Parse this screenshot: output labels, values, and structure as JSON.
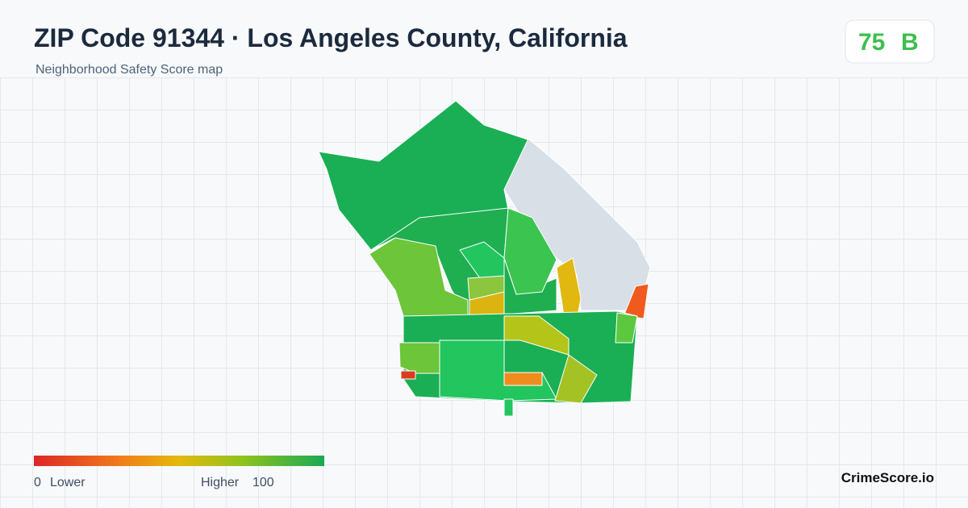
{
  "header": {
    "title": "ZIP Code 91344 · Los Angeles County, California",
    "subtitle": "Neighborhood Safety Score map"
  },
  "score": {
    "value": 75,
    "grade": "B"
  },
  "legend": {
    "min": 0,
    "min_label": "Lower",
    "max_label": "Higher",
    "max": 100
  },
  "footer": {
    "brand": "CrimeScore.io"
  }
}
